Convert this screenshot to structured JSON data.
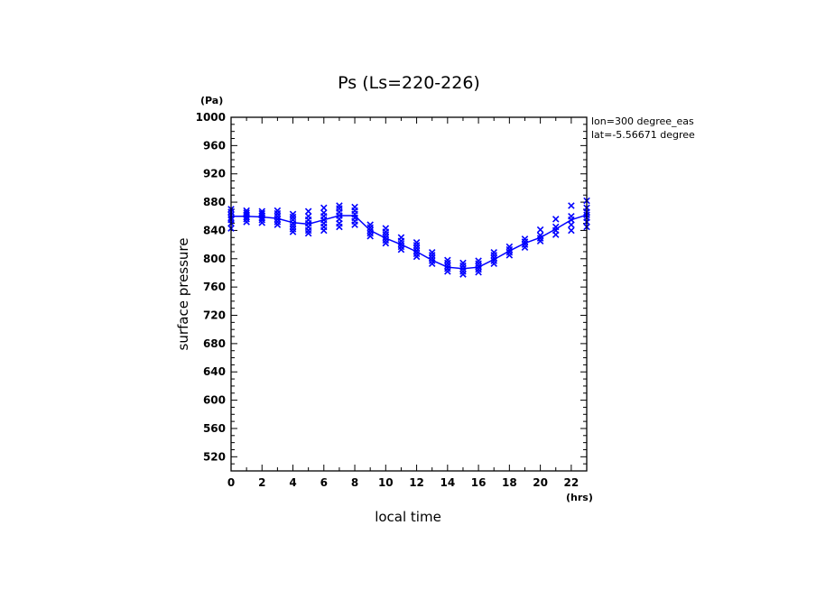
{
  "chart_data": {
    "type": "line",
    "title": "Ps (Ls=220-226)",
    "xlabel": "local time",
    "ylabel": "surface pressure",
    "x_unit": "(hrs)",
    "y_unit": "(Pa)",
    "annotations": [
      "lon=300 degree_eas",
      "lat=-5.56671 degree"
    ],
    "xlim": [
      0,
      23
    ],
    "ylim": [
      500,
      1000
    ],
    "x_ticks": [
      0,
      2,
      4,
      6,
      8,
      10,
      12,
      14,
      16,
      18,
      20,
      22
    ],
    "y_ticks": [
      520,
      560,
      600,
      640,
      680,
      720,
      760,
      800,
      840,
      880,
      920,
      960,
      1000
    ],
    "grid": false,
    "color": "#0000ff",
    "series": [
      {
        "style": "line",
        "x": [
          0,
          1,
          2,
          3,
          4,
          5,
          6,
          7,
          8,
          9,
          10,
          11,
          12,
          13,
          14,
          15,
          16,
          17,
          18,
          19,
          20,
          21,
          22,
          23
        ],
        "y": [
          860,
          860,
          859,
          857,
          851,
          849,
          855,
          861,
          861,
          840,
          829,
          820,
          810,
          798,
          788,
          786,
          788,
          799,
          811,
          822,
          830,
          842,
          855,
          862
        ]
      },
      {
        "style": "scatter",
        "marker": "x",
        "points": [
          [
            0,
            843
          ],
          [
            0,
            850
          ],
          [
            0,
            855
          ],
          [
            0,
            858
          ],
          [
            0,
            862
          ],
          [
            0,
            866
          ],
          [
            0,
            870
          ],
          [
            1,
            852
          ],
          [
            1,
            856
          ],
          [
            1,
            859
          ],
          [
            1,
            862
          ],
          [
            1,
            865
          ],
          [
            1,
            868
          ],
          [
            2,
            851
          ],
          [
            2,
            855
          ],
          [
            2,
            858
          ],
          [
            2,
            861
          ],
          [
            2,
            864
          ],
          [
            2,
            867
          ],
          [
            3,
            848
          ],
          [
            3,
            852
          ],
          [
            3,
            856
          ],
          [
            3,
            860
          ],
          [
            3,
            864
          ],
          [
            3,
            868
          ],
          [
            4,
            838
          ],
          [
            4,
            842
          ],
          [
            4,
            846
          ],
          [
            4,
            850
          ],
          [
            4,
            855
          ],
          [
            4,
            859
          ],
          [
            4,
            863
          ],
          [
            5,
            836
          ],
          [
            5,
            840
          ],
          [
            5,
            845
          ],
          [
            5,
            850
          ],
          [
            5,
            855
          ],
          [
            5,
            860
          ],
          [
            5,
            867
          ],
          [
            6,
            840
          ],
          [
            6,
            845
          ],
          [
            6,
            850
          ],
          [
            6,
            855
          ],
          [
            6,
            860
          ],
          [
            6,
            865
          ],
          [
            6,
            872
          ],
          [
            7,
            845
          ],
          [
            7,
            850
          ],
          [
            7,
            856
          ],
          [
            7,
            861
          ],
          [
            7,
            866
          ],
          [
            7,
            871
          ],
          [
            7,
            875
          ],
          [
            8,
            848
          ],
          [
            8,
            853
          ],
          [
            8,
            858
          ],
          [
            8,
            863
          ],
          [
            8,
            868
          ],
          [
            8,
            873
          ],
          [
            9,
            832
          ],
          [
            9,
            836
          ],
          [
            9,
            840
          ],
          [
            9,
            844
          ],
          [
            9,
            848
          ],
          [
            10,
            822
          ],
          [
            10,
            826
          ],
          [
            10,
            830
          ],
          [
            10,
            834
          ],
          [
            10,
            838
          ],
          [
            10,
            843
          ],
          [
            11,
            813
          ],
          [
            11,
            817
          ],
          [
            11,
            821
          ],
          [
            11,
            825
          ],
          [
            11,
            830
          ],
          [
            12,
            803
          ],
          [
            12,
            807
          ],
          [
            12,
            811
          ],
          [
            12,
            815
          ],
          [
            12,
            819
          ],
          [
            12,
            823
          ],
          [
            13,
            793
          ],
          [
            13,
            797
          ],
          [
            13,
            801
          ],
          [
            13,
            805
          ],
          [
            13,
            809
          ],
          [
            14,
            782
          ],
          [
            14,
            786
          ],
          [
            14,
            790
          ],
          [
            14,
            794
          ],
          [
            14,
            798
          ],
          [
            15,
            778
          ],
          [
            15,
            782
          ],
          [
            15,
            786
          ],
          [
            15,
            790
          ],
          [
            15,
            794
          ],
          [
            16,
            781
          ],
          [
            16,
            785
          ],
          [
            16,
            789
          ],
          [
            16,
            793
          ],
          [
            16,
            797
          ],
          [
            17,
            793
          ],
          [
            17,
            797
          ],
          [
            17,
            801
          ],
          [
            17,
            805
          ],
          [
            17,
            809
          ],
          [
            18,
            805
          ],
          [
            18,
            809
          ],
          [
            18,
            813
          ],
          [
            18,
            817
          ],
          [
            19,
            816
          ],
          [
            19,
            820
          ],
          [
            19,
            824
          ],
          [
            19,
            828
          ],
          [
            20,
            825
          ],
          [
            20,
            829
          ],
          [
            20,
            833
          ],
          [
            20,
            841
          ],
          [
            21,
            834
          ],
          [
            21,
            840
          ],
          [
            21,
            845
          ],
          [
            21,
            856
          ],
          [
            22,
            840
          ],
          [
            22,
            848
          ],
          [
            22,
            855
          ],
          [
            22,
            860
          ],
          [
            22,
            875
          ],
          [
            23,
            845
          ],
          [
            23,
            852
          ],
          [
            23,
            858
          ],
          [
            23,
            862
          ],
          [
            23,
            866
          ],
          [
            23,
            872
          ],
          [
            23,
            882
          ]
        ]
      }
    ]
  }
}
